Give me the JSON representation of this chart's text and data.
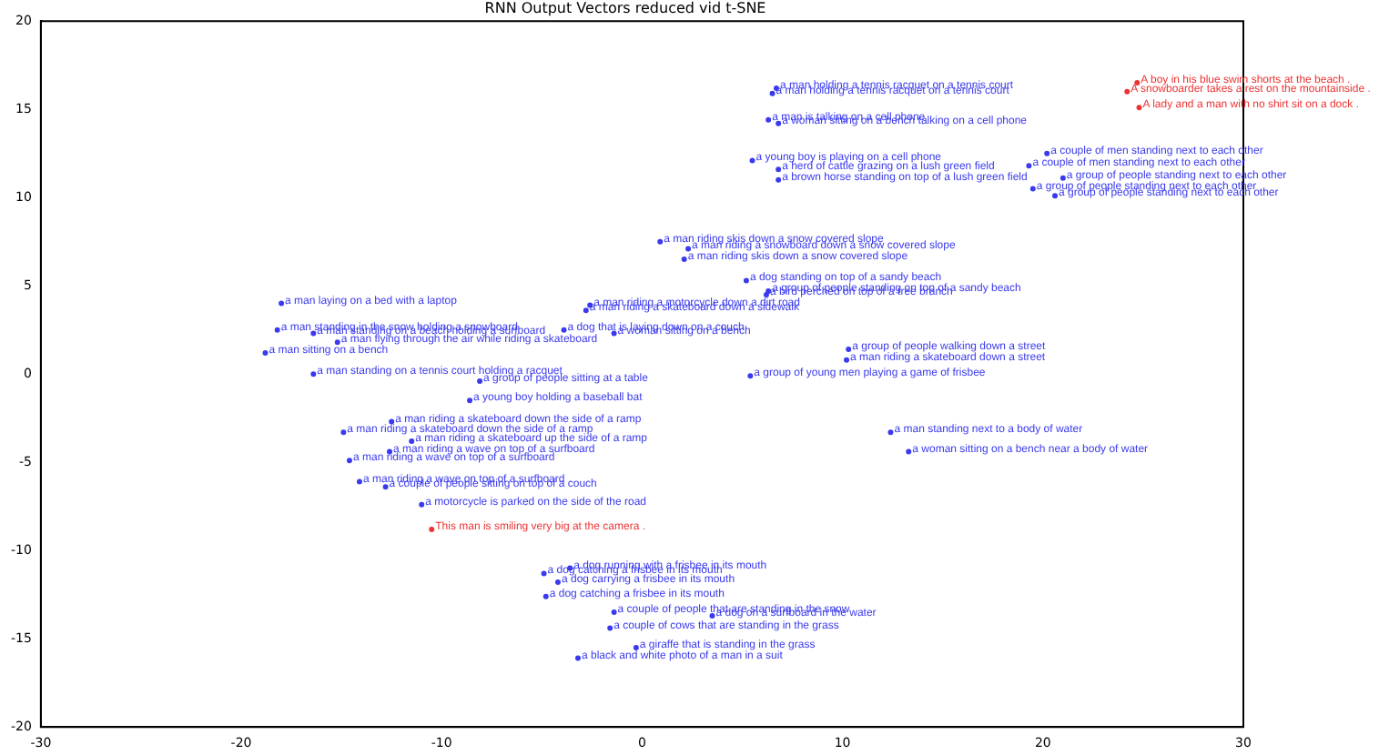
{
  "chart_data": {
    "type": "scatter",
    "title": "RNN Output Vectors reduced vid t-SNE",
    "marker": "circle",
    "grid": false,
    "legend": false,
    "xlim": [
      -30,
      30
    ],
    "xticks": [
      -30,
      -20,
      -10,
      0,
      10,
      20,
      30
    ],
    "ylim": [
      -20,
      20
    ],
    "yticks": [
      -20,
      -15,
      -10,
      -5,
      0,
      5,
      10,
      15,
      20
    ],
    "series": [
      {
        "color": "#3a3aee",
        "x": [
          6.7,
          6.5,
          6.3,
          6.8,
          5.5,
          6.8,
          6.8,
          20.2,
          19.3,
          21.0,
          19.5,
          20.6,
          0.9,
          2.3,
          2.1,
          5.2,
          6.3,
          6.2,
          -2.6,
          -2.8,
          -18.0,
          -18.2,
          -16.4,
          -3.9,
          -1.4,
          -15.2,
          -18.8,
          -16.4,
          -8.1,
          -8.6,
          -12.5,
          -14.9,
          -11.5,
          -12.6,
          -14.6,
          -14.1,
          -12.8,
          -11.0,
          10.3,
          10.2,
          5.4,
          12.4,
          13.3,
          -3.6,
          -4.9,
          -4.2,
          -4.8,
          -1.4,
          3.5,
          -1.6,
          -0.3,
          -3.2
        ],
        "values": [
          16.2,
          15.9,
          14.4,
          14.2,
          12.1,
          11.6,
          11.0,
          12.5,
          11.8,
          11.1,
          10.5,
          10.1,
          7.5,
          7.1,
          6.5,
          5.3,
          4.7,
          4.5,
          3.9,
          3.6,
          4.0,
          2.5,
          2.3,
          2.5,
          2.3,
          1.8,
          1.2,
          0.0,
          -0.4,
          -1.5,
          -2.7,
          -3.3,
          -3.8,
          -4.4,
          -4.9,
          -6.1,
          -6.4,
          -7.4,
          1.4,
          0.8,
          -0.1,
          -3.3,
          -4.4,
          -11.0,
          -11.3,
          -11.8,
          -12.6,
          -13.5,
          -13.7,
          -14.4,
          -15.5,
          -16.1
        ],
        "value_labels": [
          "a man holding a tennis racquet on a tennis court",
          "a man holding a tennis racquet on a tennis court",
          "a man is talking on a cell phone",
          "a woman sitting on a bench talking on a cell phone",
          "a young boy is playing on a cell phone",
          "a herd of cattle grazing on a lush green field",
          "a brown horse standing on top of a lush green field",
          "a couple of men standing next to each other",
          "a couple of men standing next to each other",
          "a group of people standing next to each other",
          "a group of people standing next to each other",
          "a group of people standing next to each other",
          "a man riding skis down a snow covered slope",
          "a man riding a snowboard down a snow covered slope",
          "a man riding skis down a snow covered slope",
          "a dog standing on top of a sandy beach",
          "a group of people standing on top of a sandy beach",
          "a bird perched on top of a tree branch",
          "a man riding a motorcycle down a dirt road",
          "a man riding a skateboard down a sidewalk",
          "a man laying on a bed with a laptop",
          "a man standing in the snow holding a snowboard",
          "a man standing on a beach holding a surfboard",
          "a dog that is laying down on a couch",
          "a woman sitting on a bench",
          "a man flying through the air while riding a skateboard",
          "a man sitting on a bench",
          "a man standing on a tennis court holding a racquet",
          "a group of people sitting at a table",
          "a young boy holding a baseball bat",
          "a man riding a skateboard down the side of a ramp",
          "a man riding a skateboard down the side of a ramp",
          "a man riding a skateboard up the side of a ramp",
          "a man riding a wave on top of a surfboard",
          "a man riding a wave on top of a surfboard",
          "a man riding a wave on top of a surfboard",
          "a couple of people sitting on top of a couch",
          "a motorcycle is parked on the side of the road",
          "a group of people walking down a street",
          "a man riding a skateboard down a street",
          "a group of young men playing a game of frisbee",
          "a man standing next to a body of water",
          "a woman sitting on a bench near a body of water",
          "a dog running with a frisbee in its mouth",
          "a dog catching a frisbee in its mouth",
          "a dog carrying a frisbee in its mouth",
          "a dog catching a frisbee in its mouth",
          "a couple of people that are standing in the snow",
          "a dog on a surfboard in the water",
          "a couple of cows that are standing in the grass",
          "a giraffe that is standing in the grass",
          "a black and white photo of a man in a suit"
        ]
      },
      {
        "color": "#ee3333",
        "x": [
          24.7,
          24.2,
          24.8,
          -10.5
        ],
        "values": [
          16.5,
          16.0,
          15.1,
          -8.8
        ],
        "value_labels": [
          "A boy in his blue swim shorts at the beach .",
          "A snowboarder takes a rest on the mountainside .",
          "A lady and a man with no shirt sit on a dock .",
          "This man is smiling very big at the camera ."
        ]
      }
    ]
  }
}
